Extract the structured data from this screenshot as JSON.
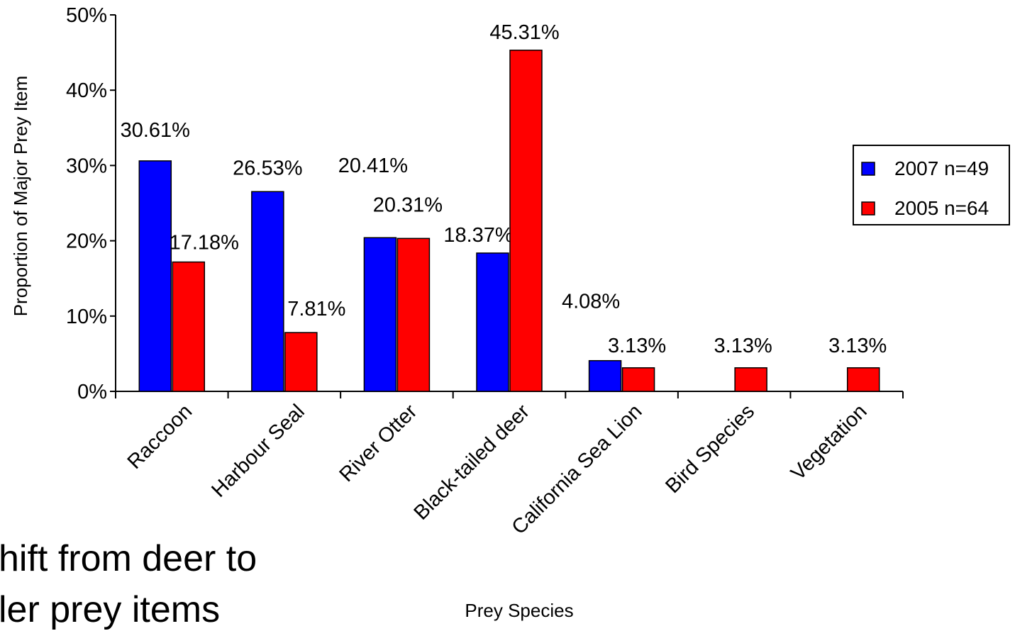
{
  "chart_data": {
    "type": "bar",
    "title": "",
    "xlabel": "Prey Species",
    "ylabel": "Proportion of Major Prey Item",
    "ylim": [
      0,
      50
    ],
    "yticks": [
      "0%",
      "10%",
      "20%",
      "30%",
      "40%",
      "50%"
    ],
    "categories": [
      "Raccoon",
      "Harbour Seal",
      "River Otter",
      "Black-tailed deer",
      "California Sea Lion",
      "Bird Species",
      "Vegetation"
    ],
    "series": [
      {
        "name": "2007 n=49",
        "color": "#0000ff",
        "values": [
          30.61,
          26.53,
          20.41,
          18.37,
          4.08,
          null,
          null
        ],
        "labels": [
          "30.61%",
          "26.53%",
          "20.41%",
          "18.37%",
          "4.08%",
          "",
          ""
        ]
      },
      {
        "name": "2005 n=64",
        "color": "#ff0000",
        "values": [
          17.18,
          7.81,
          20.31,
          45.31,
          3.13,
          3.13,
          3.13
        ],
        "labels": [
          "17.18%",
          "7.81%",
          "20.31%",
          "45.31%",
          "3.13%",
          "3.13%",
          "3.13%"
        ]
      }
    ],
    "grid": false,
    "legend_position": "right"
  },
  "caption": {
    "line1": "hift from deer to",
    "line2": "ler prey items"
  }
}
